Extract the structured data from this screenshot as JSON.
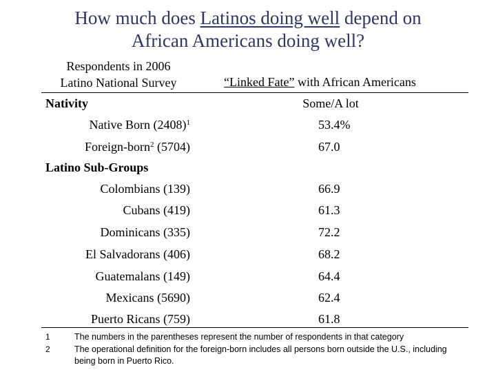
{
  "title": {
    "line1_prefix": "How much does ",
    "line1_underlined": "Latinos doing well",
    "line1_suffix": " depend on",
    "line2": "African Americans doing well?"
  },
  "survey_label": {
    "line1": "Respondents in 2006",
    "line2": "Latino National Survey"
  },
  "linked_fate_header": {
    "underlined": "“Linked Fate”",
    "rest": " with African Americans"
  },
  "col_header": "Some/A lot",
  "nativity": {
    "label": "Nativity",
    "rows": [
      {
        "label": "Native Born (2408)",
        "sup": "1",
        "sup_position": "end",
        "value": "53.4%"
      },
      {
        "label_prefix": "Foreign-born",
        "sup": "2",
        "label_suffix": " (5704)",
        "value": "67.0"
      }
    ]
  },
  "subgroups": {
    "label": "Latino Sub-Groups",
    "rows": [
      {
        "label": "Colombians (139)",
        "value": "66.9"
      },
      {
        "label": "Cubans (419)",
        "value": "61.3"
      },
      {
        "label": "Dominicans (335)",
        "value": "72.2"
      },
      {
        "label": "El Salvadorans (406)",
        "value": "68.2"
      },
      {
        "label": "Guatemalans (149)",
        "value": "64.4"
      },
      {
        "label": "Mexicans (5690)",
        "value": "62.4"
      },
      {
        "label": "Puerto Ricans (759)",
        "value": "61.8"
      }
    ]
  },
  "footnotes": [
    {
      "num": "1",
      "text": "The numbers in the parentheses represent the number of respondents in that category"
    },
    {
      "num": "2",
      "text": "The operational definition for the foreign-born includes all persons born outside the U.S., including being born in Puerto Rico."
    }
  ],
  "colors": {
    "title": "#333366",
    "text": "#000000"
  }
}
